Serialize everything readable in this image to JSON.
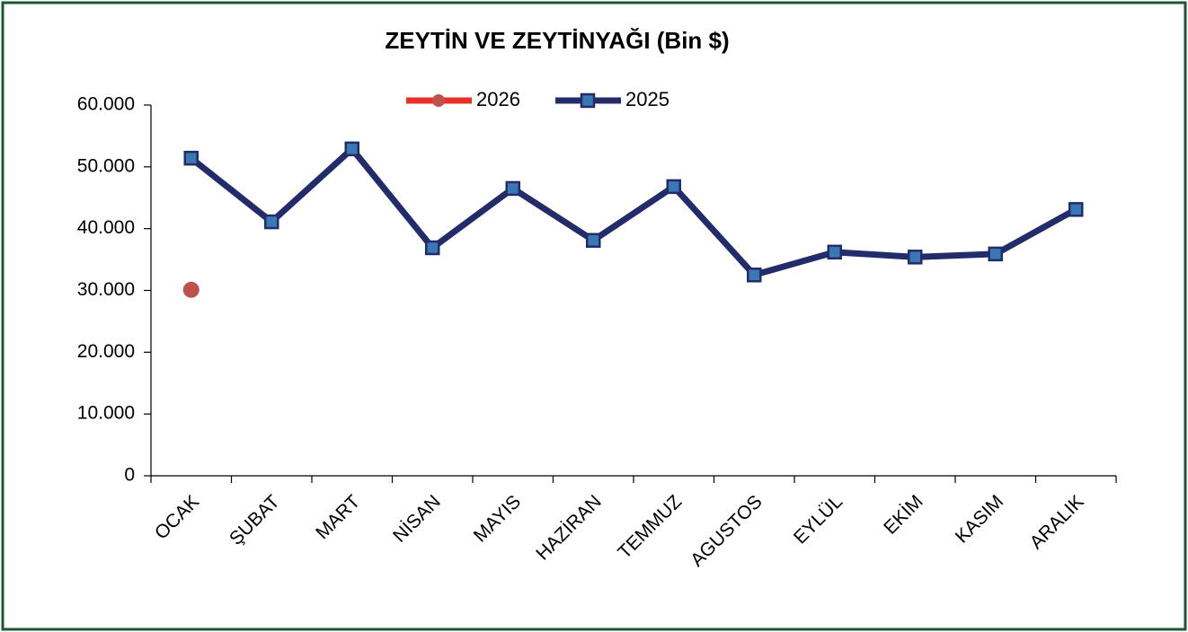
{
  "chart_data": {
    "type": "line",
    "title": "ZEYTİN  VE ZEYTİNYAĞI  (Bin $)",
    "categories": [
      "OCAK",
      "ŞUBAT",
      "MART",
      "NİSAN",
      "MAYIS",
      "HAZİRAN",
      "TEMMUZ",
      "AGUSTOS",
      "EYLÜL",
      "EKİM",
      "KASIM",
      "ARALIK"
    ],
    "series": [
      {
        "name": "2026",
        "color": "#e8312a",
        "marker_color": "#c0504d",
        "marker": "circle",
        "values": [
          30100,
          null,
          null,
          null,
          null,
          null,
          null,
          null,
          null,
          null,
          null,
          null
        ]
      },
      {
        "name": "2025",
        "color": "#232c6b",
        "marker_color": "#3a78b5",
        "marker": "square",
        "values": [
          51400,
          41100,
          52900,
          36900,
          46500,
          38100,
          46800,
          32500,
          36200,
          35400,
          35900,
          43100
        ]
      }
    ],
    "ylim": [
      0,
      60000
    ],
    "yticks": [
      0,
      {
        "value": 10000,
        "label": "10.000"
      },
      {
        "value": 20000,
        "label": "20.000"
      },
      {
        "value": 30000,
        "label": "30.000"
      },
      {
        "value": 40000,
        "label": "40.000"
      },
      {
        "value": 50000,
        "label": "50.000"
      },
      {
        "value": 60000,
        "label": "60.000"
      }
    ],
    "grid": false,
    "legend": "top"
  }
}
